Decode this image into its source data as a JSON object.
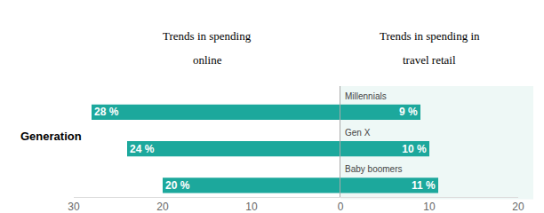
{
  "chart_data": [
    {
      "type": "bar",
      "orientation": "horizontal",
      "title": "Trends in spending\nonline",
      "ylabel": "Generation",
      "categories": [
        "Millennials",
        "Gen X",
        "Baby boomers"
      ],
      "values": [
        28,
        24,
        20
      ],
      "value_labels": [
        "28 %",
        "24 %",
        "20 %"
      ],
      "data_labels": true,
      "color": "#1ca89c",
      "xlim": [
        30,
        0
      ],
      "xticks": [
        30,
        20,
        10,
        0
      ]
    },
    {
      "type": "bar",
      "orientation": "horizontal",
      "title": "Trends in spending in\ntravel retail",
      "categories": [
        "Millennials",
        "Gen X",
        "Baby boomers"
      ],
      "values": [
        9,
        10,
        11
      ],
      "value_labels": [
        "9 %",
        "10 %",
        "11 %"
      ],
      "data_labels": true,
      "color": "#1ca89c",
      "xlim": [
        0,
        20
      ],
      "xticks": [
        10,
        20
      ]
    }
  ]
}
